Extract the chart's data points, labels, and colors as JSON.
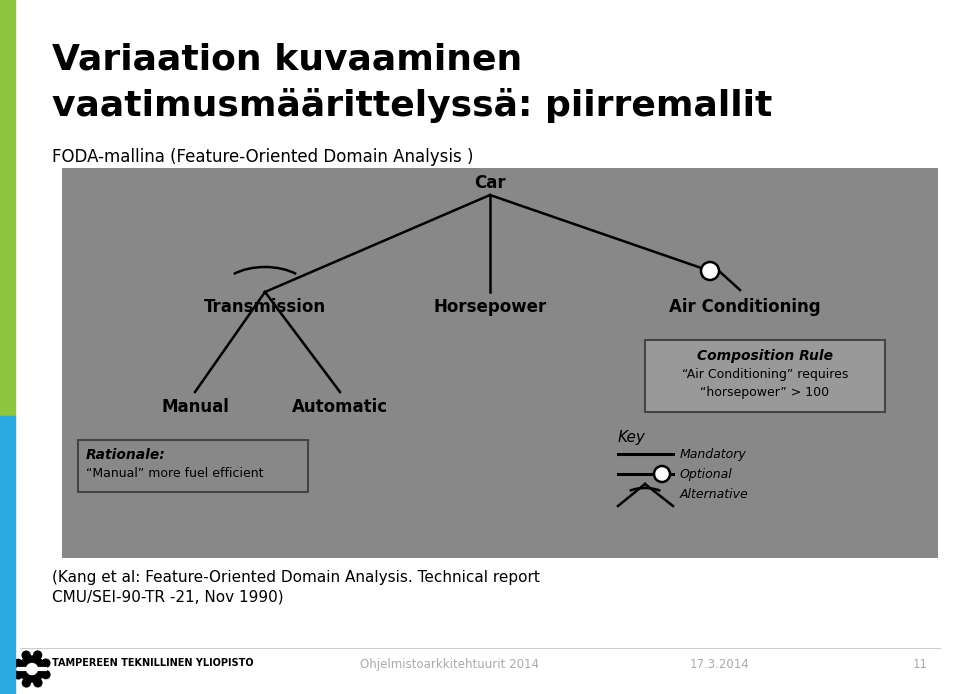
{
  "title_line1": "Variaation kuvaaminen",
  "title_line2": "vaatimusmäärittelyssä: piirremallit",
  "subtitle": "FODA-mallina (Feature-Oriented Domain Analysis )",
  "bg_color": "#888888",
  "slide_bg": "#ffffff",
  "left_bar_green": "#8dc63f",
  "left_bar_blue": "#29abe2",
  "footer_text1": "Ohjelmistoarkkitehtuurit 2014",
  "footer_text2": "17.3.2014",
  "footer_text3": "11",
  "footer_university": "TAMPEREEN TEKNILLINEN YLIOPISTO",
  "citation_line1": "(Kang et al: Feature-Oriented Domain Analysis. Technical report",
  "citation_line2": "CMU/SEI-90-TR -21, Nov 1990)",
  "node_car": "Car",
  "node_transmission": "Transmission",
  "node_horsepower": "Horsepower",
  "node_airconditioning": "Air Conditioning",
  "node_manual": "Manual",
  "node_automatic": "Automatic",
  "composition_title": "Composition Rule",
  "composition_line1": "“Air Conditioning” requires",
  "composition_line2": "“horsepower” > 100",
  "rationale_title": "Rationale:",
  "rationale_text": "“Manual” more fuel efficient",
  "key_title": "Key",
  "key_mandatory": "Mandatory",
  "key_optional": "Optional",
  "key_alternative": "Alternative"
}
